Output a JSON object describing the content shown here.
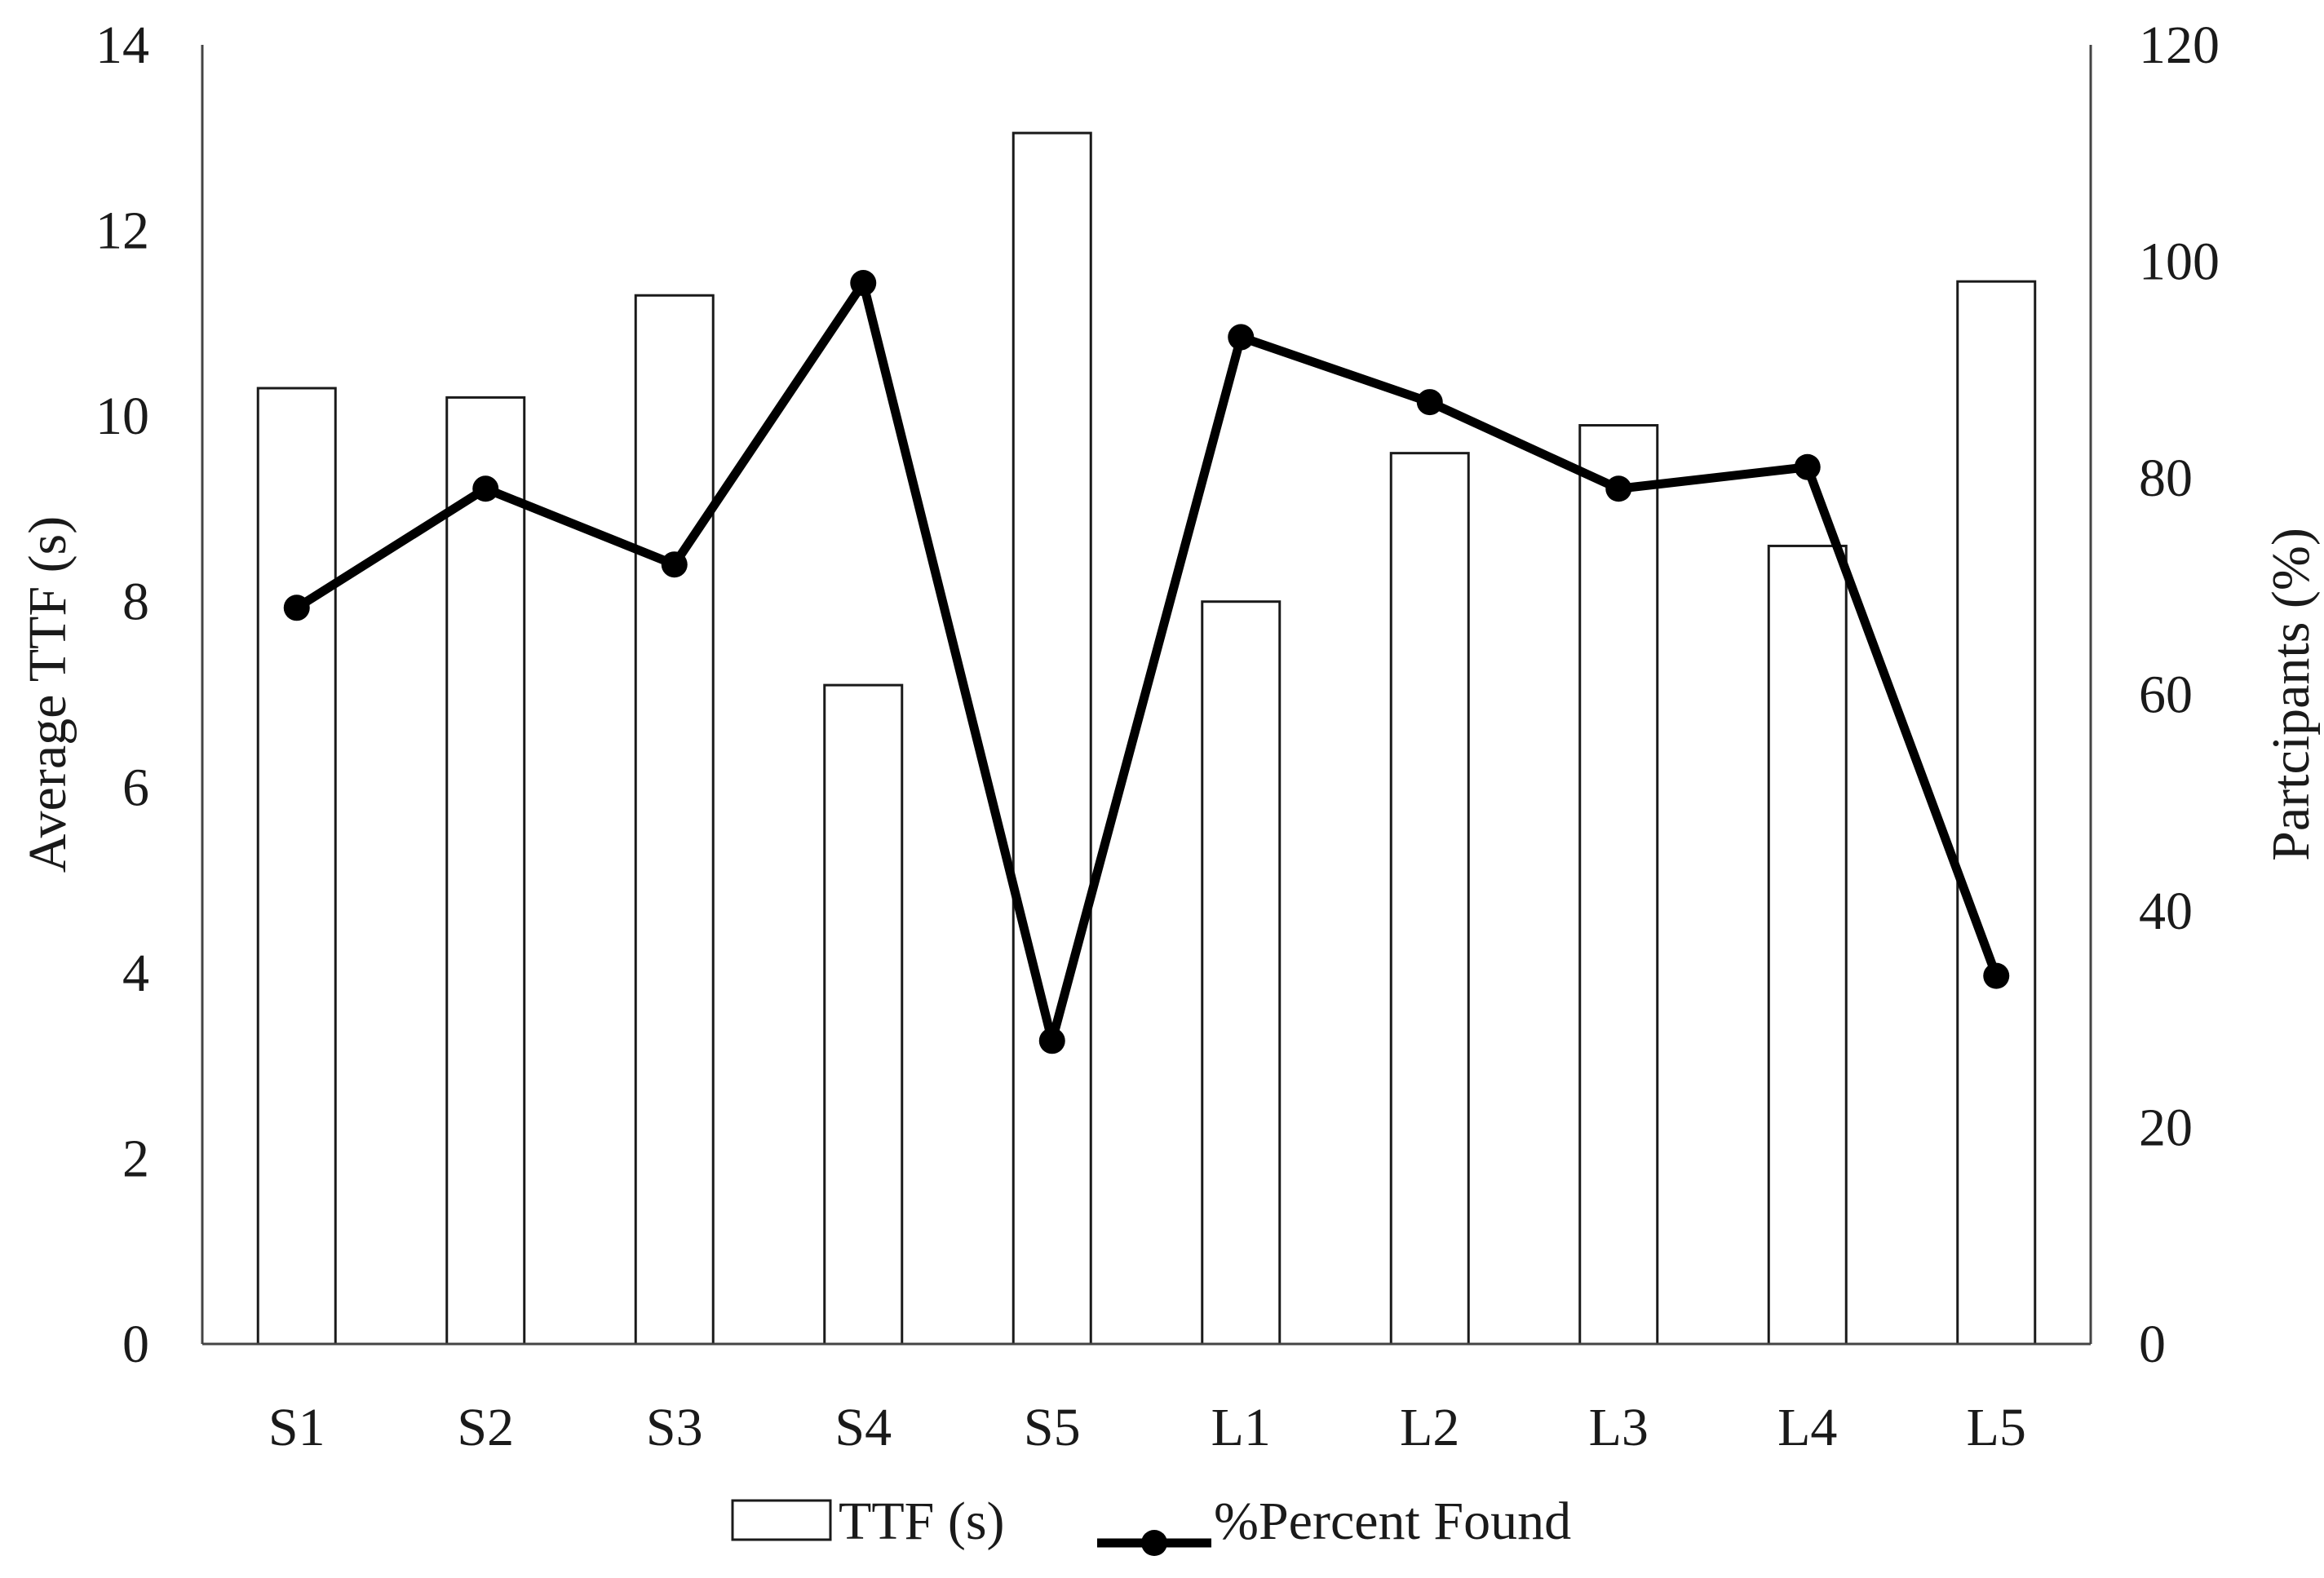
{
  "chart_data": {
    "type": "bar",
    "categories": [
      "S1",
      "S2",
      "S3",
      "S4",
      "S5",
      "L1",
      "L2",
      "L3",
      "L4",
      "L5"
    ],
    "series": [
      {
        "name": "TTF (s)",
        "type": "bar",
        "axis": "left",
        "values": [
          10.3,
          10.2,
          11.3,
          7.1,
          13.05,
          8.0,
          9.6,
          9.9,
          8.6,
          11.45
        ]
      },
      {
        "name": "%Percent Found",
        "type": "line",
        "axis": "right",
        "values": [
          68,
          79,
          72,
          98,
          28,
          93,
          87,
          79,
          81,
          34
        ]
      }
    ],
    "xlabel": "",
    "ylabel": "Average TTF (s)",
    "ylabel_right": "Partcipants (%)",
    "ylim": [
      0,
      14
    ],
    "ylim_right": [
      0,
      120
    ],
    "yticks": [
      "0",
      "2",
      "4",
      "6",
      "8",
      "10",
      "12",
      "14"
    ],
    "yticks_right": [
      "0",
      "20",
      "40",
      "60",
      "80",
      "100",
      "120"
    ],
    "grid": false,
    "legend_position": "bottom-center",
    "colors": {
      "bar_fill": "#ffffff",
      "bar_stroke": "#1a1a1a",
      "line": "#000000",
      "marker": "#000000"
    }
  }
}
